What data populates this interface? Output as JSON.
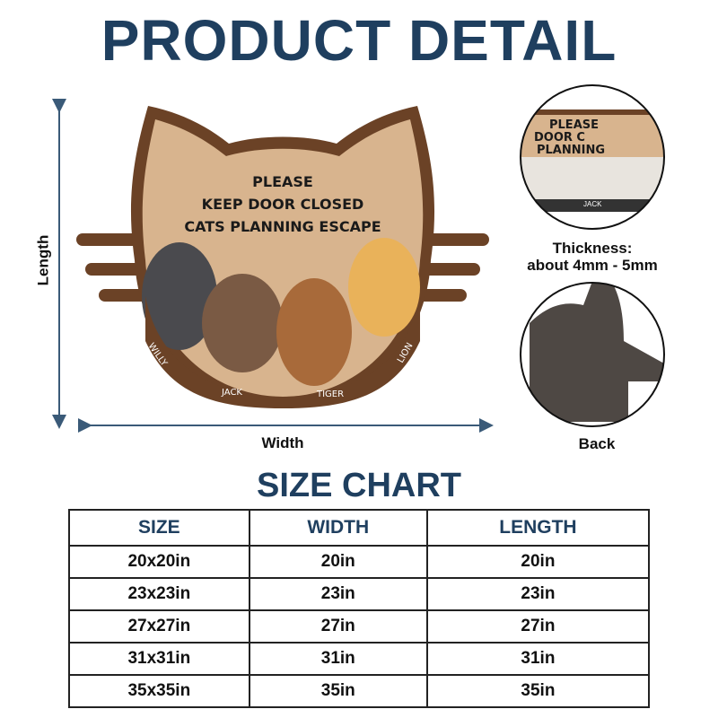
{
  "title": "PRODUCT DETAIL",
  "mat": {
    "lines": [
      "PLEASE",
      "KEEP DOOR CLOSED",
      "CATS PLANNING ESCAPE"
    ],
    "names": [
      "WILLY",
      "JACK",
      "TIGER",
      "LION"
    ]
  },
  "dimensions": {
    "length": "Length",
    "width": "Width"
  },
  "detail": {
    "thickness_line1": "Thickness:",
    "thickness_line2": "about 4mm - 5mm",
    "back": "Back",
    "closeup_text": [
      "PLEASE",
      "DOOR C",
      "PLANNING"
    ],
    "closeup_name": "JACK"
  },
  "size_chart": {
    "title": "SIZE CHART",
    "headers": [
      "SIZE",
      "WIDTH",
      "LENGTH"
    ],
    "rows": [
      [
        "20x20in",
        "20in",
        "20in"
      ],
      [
        "23x23in",
        "23in",
        "23in"
      ],
      [
        "27x27in",
        "27in",
        "27in"
      ],
      [
        "31x31in",
        "31in",
        "31in"
      ],
      [
        "35x35in",
        "35in",
        "35in"
      ]
    ]
  },
  "colors": {
    "title": "#1f3f5f",
    "mat_border": "#6b4226",
    "mat_fill": "#d8b48e"
  }
}
